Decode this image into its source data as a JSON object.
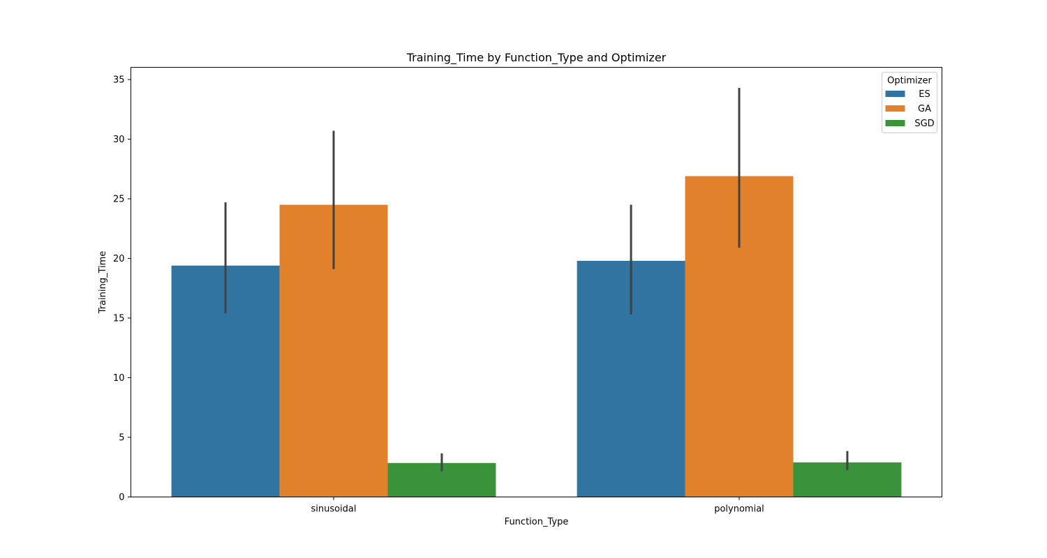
{
  "chart_data": {
    "type": "bar",
    "title": "Training_Time by Function_Type and Optimizer",
    "xlabel": "Function_Type",
    "ylabel": "Training_Time",
    "categories": [
      "sinusoidal",
      "polynomial"
    ],
    "ylim": [
      0,
      36
    ],
    "yticks": [
      0,
      5,
      10,
      15,
      20,
      25,
      30,
      35
    ],
    "grid": false,
    "legend": {
      "title": "Optimizer",
      "position": "top-right"
    },
    "series": [
      {
        "name": "ES",
        "color": "#3274a1",
        "values": [
          19.4,
          19.8
        ],
        "err_low": [
          15.4,
          15.3
        ],
        "err_high": [
          24.7,
          24.5
        ]
      },
      {
        "name": "GA",
        "color": "#e1812c",
        "values": [
          24.5,
          26.9
        ],
        "err_low": [
          19.1,
          20.9
        ],
        "err_high": [
          30.7,
          34.3
        ]
      },
      {
        "name": "SGD",
        "color": "#3a923a",
        "values": [
          2.85,
          2.9
        ],
        "err_low": [
          2.15,
          2.25
        ],
        "err_high": [
          3.65,
          3.85
        ]
      }
    ],
    "errorbar_color": "#424242"
  }
}
